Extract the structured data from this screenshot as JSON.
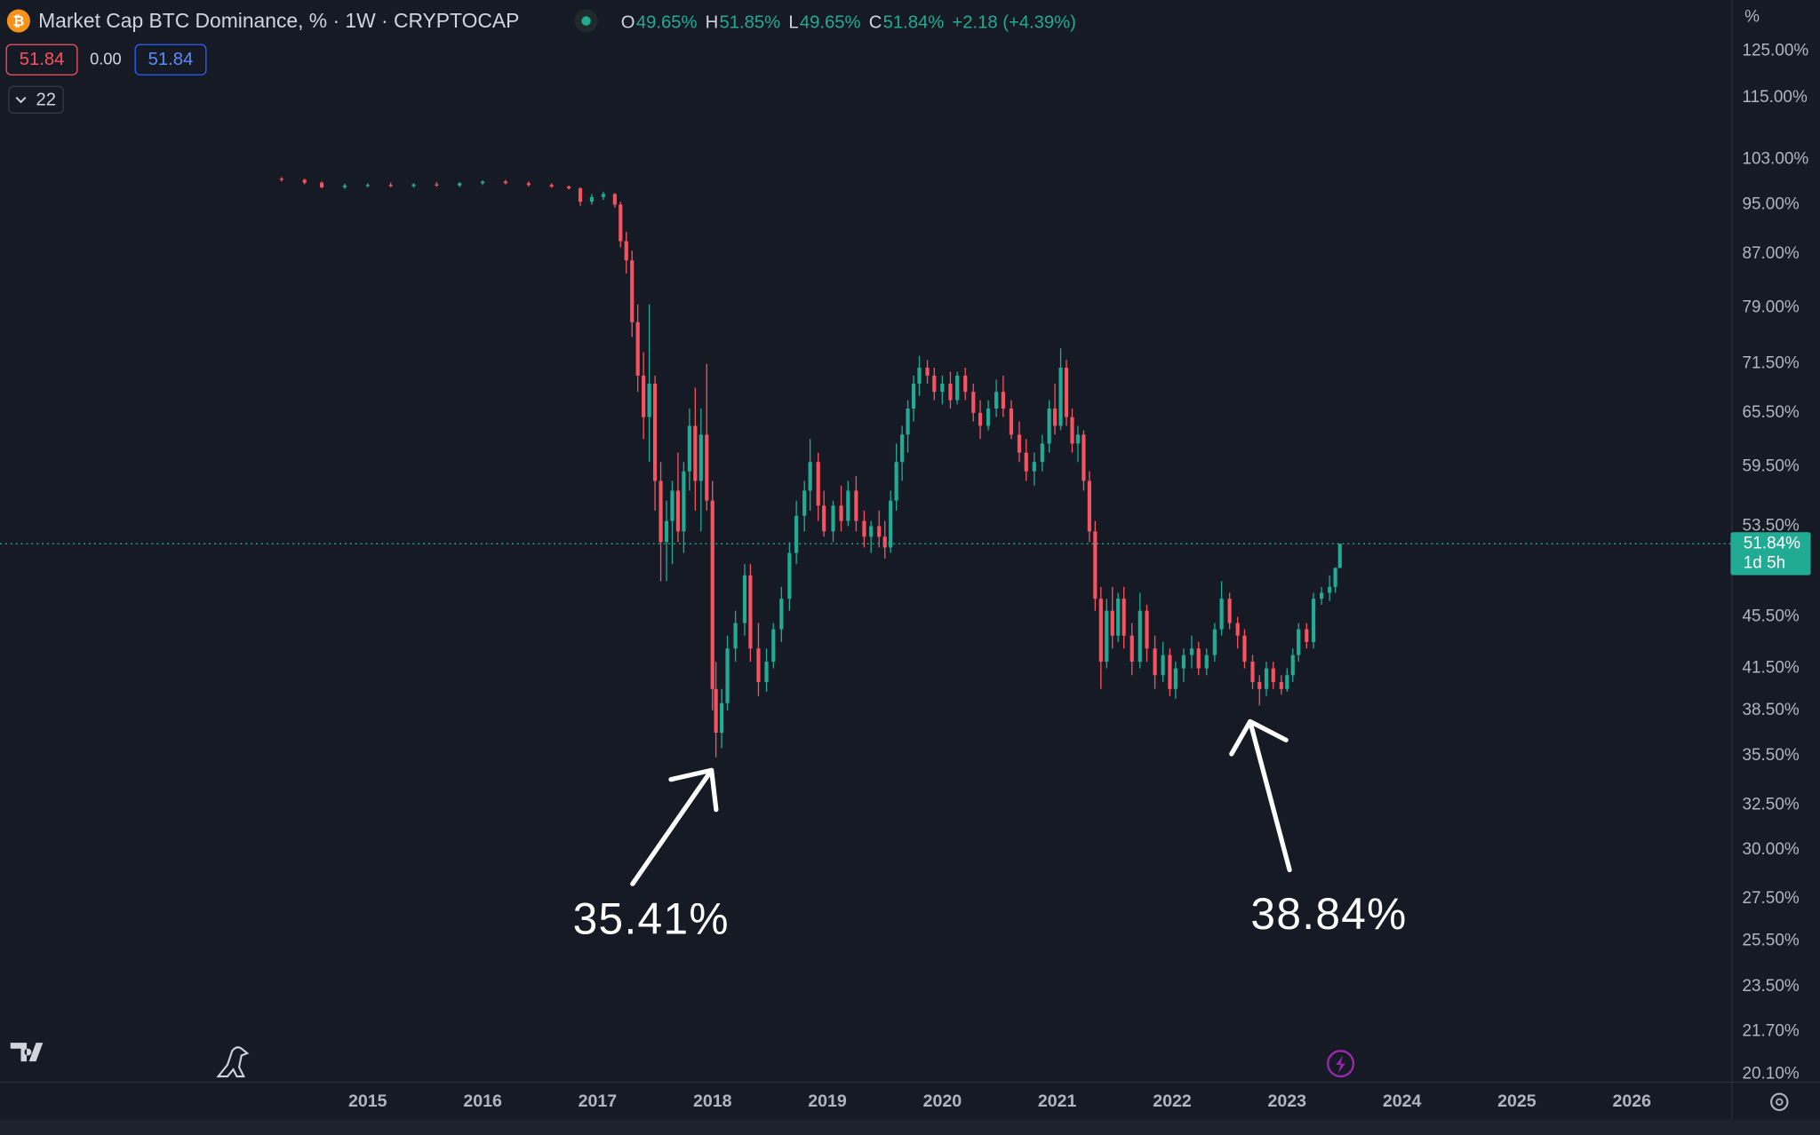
{
  "chart_data": {
    "type": "candlestick",
    "title": "Market Cap BTC Dominance, % · 1W · CRYPTOCAP",
    "ohlc_legend": [
      {
        "key": "O",
        "value": "49.65%"
      },
      {
        "key": "H",
        "value": "51.85%"
      },
      {
        "key": "L",
        "value": "49.65%"
      },
      {
        "key": "C",
        "value": "51.84%"
      }
    ],
    "change": "+2.18 (+4.39%)",
    "badges": [
      "51.84",
      "0.00",
      "51.84"
    ],
    "indicator_count": "22",
    "axis_unit": "%",
    "countdown": "1d 5h",
    "last_price_label": "51.84%",
    "annotations": [
      "35.41%",
      "38.84%"
    ],
    "log_scale": true,
    "grid": false,
    "up_color": "#22ab94",
    "down_color": "#f7525f",
    "xlim": [
      2011.8,
      2026.87
    ],
    "xticks": [
      2015,
      2016,
      2017,
      2018,
      2019,
      2020,
      2021,
      2022,
      2023,
      2024,
      2025,
      2026
    ],
    "ylim": [
      19.82,
      136.9
    ],
    "yticks": [
      {
        "value": 125,
        "label": "125.00%"
      },
      {
        "value": 115,
        "label": "115.00%"
      },
      {
        "value": 103,
        "label": "103.00%"
      },
      {
        "value": 95,
        "label": "95.00%"
      },
      {
        "value": 87,
        "label": "87.00%"
      },
      {
        "value": 79,
        "label": "79.00%"
      },
      {
        "value": 71.5,
        "label": "71.50%"
      },
      {
        "value": 65.5,
        "label": "65.50%"
      },
      {
        "value": 59.5,
        "label": "59.50%"
      },
      {
        "value": 53.5,
        "label": "53.50%"
      },
      {
        "value": 45.5,
        "label": "45.50%"
      },
      {
        "value": 41.5,
        "label": "41.50%"
      },
      {
        "value": 38.5,
        "label": "38.50%"
      },
      {
        "value": 35.5,
        "label": "35.50%"
      },
      {
        "value": 32.5,
        "label": "32.50%"
      },
      {
        "value": 30,
        "label": "30.00%"
      },
      {
        "value": 27.5,
        "label": "27.50%"
      },
      {
        "value": 25.5,
        "label": "25.50%"
      },
      {
        "value": 23.5,
        "label": "23.50%"
      },
      {
        "value": 21.7,
        "label": "21.70%"
      },
      {
        "value": 20.1,
        "label": "20.10%"
      }
    ],
    "x": [
      2014.25,
      2014.45,
      2014.6,
      2014.8,
      2015.0,
      2015.2,
      2015.4,
      2015.6,
      2015.8,
      2016.0,
      2016.2,
      2016.4,
      2016.6,
      2016.75,
      2016.85,
      2016.95,
      2017.05,
      2017.15,
      2017.2,
      2017.25,
      2017.3,
      2017.35,
      2017.4,
      2017.45,
      2017.5,
      2017.55,
      2017.6,
      2017.65,
      2017.7,
      2017.75,
      2017.8,
      2017.85,
      2017.9,
      2017.95,
      2018.0,
      2018.03,
      2018.08,
      2018.13,
      2018.2,
      2018.28,
      2018.33,
      2018.4,
      2018.47,
      2018.53,
      2018.6,
      2018.67,
      2018.73,
      2018.8,
      2018.85,
      2018.92,
      2018.97,
      2019.05,
      2019.12,
      2019.18,
      2019.25,
      2019.32,
      2019.38,
      2019.45,
      2019.5,
      2019.55,
      2019.6,
      2019.65,
      2019.7,
      2019.75,
      2019.8,
      2019.87,
      2019.93,
      2020.0,
      2020.07,
      2020.13,
      2020.2,
      2020.27,
      2020.33,
      2020.4,
      2020.47,
      2020.53,
      2020.6,
      2020.67,
      2020.73,
      2020.8,
      2020.87,
      2020.93,
      2020.98,
      2021.03,
      2021.08,
      2021.13,
      2021.18,
      2021.23,
      2021.28,
      2021.33,
      2021.38,
      2021.43,
      2021.48,
      2021.53,
      2021.58,
      2021.65,
      2021.72,
      2021.78,
      2021.85,
      2021.92,
      2021.98,
      2022.03,
      2022.1,
      2022.17,
      2022.23,
      2022.3,
      2022.37,
      2022.43,
      2022.5,
      2022.57,
      2022.63,
      2022.7,
      2022.76,
      2022.82,
      2022.88,
      2022.95,
      2023.0,
      2023.05,
      2023.1,
      2023.17,
      2023.23,
      2023.3,
      2023.37,
      2023.42,
      2023.46
    ],
    "open": [
      99.5,
      99.3,
      98.8,
      98.0,
      98.3,
      98.4,
      98.2,
      98.5,
      98.3,
      98.7,
      99.0,
      98.7,
      98.4,
      98.1,
      97.8,
      95.5,
      96.3,
      96.8,
      95.0,
      89.0,
      86.0,
      77.0,
      70.0,
      65.0,
      69.0,
      58.0,
      52.0,
      54.0,
      57.0,
      53.0,
      59.0,
      64.0,
      58.0,
      63.0,
      56.0,
      40.0,
      37.0,
      39.0,
      43.0,
      45.0,
      49.0,
      43.0,
      40.5,
      42.0,
      44.5,
      47.0,
      51.0,
      54.5,
      57.0,
      60.0,
      55.5,
      53.0,
      55.5,
      54.0,
      57.0,
      54.0,
      52.5,
      53.5,
      52.5,
      51.5,
      56.0,
      60.0,
      63.0,
      66.0,
      69.0,
      71.0,
      70.0,
      68.0,
      69.0,
      67.0,
      70.0,
      68.0,
      65.5,
      64.0,
      66.0,
      68.0,
      66.0,
      63.0,
      61.0,
      59.0,
      60.0,
      62.0,
      66.0,
      64.0,
      71.0,
      65.0,
      62.0,
      63.0,
      58.0,
      53.0,
      47.0,
      42.0,
      46.0,
      44.0,
      47.0,
      44.0,
      42.0,
      46.0,
      43.0,
      41.0,
      42.5,
      40.0,
      41.5,
      42.5,
      43.0,
      41.5,
      42.5,
      44.5,
      47.0,
      45.0,
      44.0,
      42.0,
      40.5,
      40.0,
      41.5,
      40.5,
      40.0,
      41.0,
      42.5,
      44.5,
      43.5,
      47.0,
      47.5,
      48.0,
      49.65
    ],
    "high": [
      99.8,
      99.5,
      99.0,
      98.6,
      98.7,
      98.8,
      98.7,
      98.9,
      98.9,
      99.2,
      99.3,
      99.0,
      98.7,
      98.3,
      98.0,
      96.8,
      97.2,
      97.0,
      95.5,
      90.5,
      87.5,
      79.5,
      73.0,
      79.5,
      70.0,
      60.0,
      56.0,
      58.0,
      61.0,
      60.0,
      66.0,
      68.5,
      66.0,
      71.5,
      58.0,
      42.0,
      40.0,
      44.0,
      46.0,
      50.0,
      50.0,
      45.0,
      43.0,
      45.0,
      48.0,
      52.0,
      56.0,
      58.0,
      62.5,
      61.0,
      57.0,
      56.0,
      57.5,
      58.0,
      58.5,
      55.0,
      54.0,
      55.0,
      54.0,
      57.0,
      62.0,
      64.0,
      67.0,
      70.0,
      72.5,
      72.0,
      71.0,
      70.0,
      70.5,
      70.5,
      71.0,
      69.0,
      67.0,
      67.0,
      69.5,
      70.0,
      67.0,
      64.5,
      62.5,
      61.0,
      63.0,
      67.0,
      69.0,
      73.5,
      72.0,
      66.0,
      64.0,
      63.5,
      59.0,
      54.0,
      48.0,
      47.0,
      48.0,
      47.5,
      48.0,
      45.0,
      47.5,
      46.5,
      44.0,
      43.5,
      43.0,
      42.0,
      43.0,
      44.0,
      43.5,
      43.0,
      45.0,
      48.5,
      47.5,
      45.5,
      44.5,
      42.5,
      41.0,
      42.0,
      42.0,
      41.0,
      41.5,
      43.0,
      45.0,
      45.0,
      47.5,
      48.0,
      49.0,
      49.7,
      51.85
    ],
    "low": [
      99.0,
      98.5,
      97.8,
      97.7,
      98.0,
      98.0,
      97.9,
      98.1,
      98.0,
      98.4,
      98.5,
      98.1,
      97.9,
      97.6,
      94.8,
      95.0,
      95.8,
      94.5,
      88.0,
      84.0,
      75.0,
      68.0,
      62.5,
      60.0,
      55.0,
      48.5,
      48.5,
      50.0,
      52.0,
      51.0,
      57.0,
      55.0,
      53.0,
      55.0,
      38.5,
      35.41,
      36.0,
      38.5,
      42.0,
      44.0,
      42.0,
      39.5,
      39.8,
      41.5,
      43.5,
      46.0,
      50.0,
      53.0,
      55.0,
      54.0,
      52.5,
      52.0,
      53.0,
      53.5,
      53.0,
      51.5,
      51.0,
      51.5,
      50.5,
      51.0,
      55.0,
      58.0,
      61.0,
      64.5,
      67.5,
      69.0,
      67.0,
      66.5,
      66.0,
      66.5,
      67.0,
      64.5,
      62.5,
      63.5,
      65.0,
      65.0,
      62.5,
      60.0,
      58.0,
      57.5,
      59.0,
      61.0,
      63.0,
      63.5,
      64.0,
      61.0,
      60.0,
      57.0,
      52.0,
      46.0,
      40.0,
      41.5,
      43.0,
      43.5,
      43.0,
      41.0,
      41.5,
      42.0,
      40.0,
      40.5,
      39.5,
      39.3,
      40.5,
      41.5,
      41.0,
      41.0,
      42.0,
      44.0,
      44.5,
      43.0,
      41.5,
      40.0,
      38.84,
      39.5,
      40.0,
      39.6,
      39.8,
      40.5,
      42.0,
      43.0,
      43.0,
      46.5,
      46.8,
      47.5,
      49.65
    ],
    "close": [
      99.3,
      98.8,
      98.0,
      98.3,
      98.4,
      98.2,
      98.5,
      98.3,
      98.7,
      99.0,
      98.7,
      98.4,
      98.1,
      97.8,
      95.5,
      96.3,
      96.8,
      95.0,
      89.0,
      86.0,
      77.0,
      70.0,
      65.0,
      69.0,
      58.0,
      52.0,
      54.0,
      57.0,
      53.0,
      59.0,
      64.0,
      58.0,
      63.0,
      56.0,
      40.0,
      37.0,
      39.0,
      43.0,
      45.0,
      49.0,
      43.0,
      40.5,
      42.0,
      44.5,
      47.0,
      51.0,
      54.5,
      57.0,
      60.0,
      55.5,
      53.0,
      55.5,
      54.0,
      57.0,
      54.0,
      52.5,
      53.5,
      52.5,
      51.5,
      56.0,
      60.0,
      63.0,
      66.0,
      69.0,
      71.0,
      70.0,
      68.0,
      69.0,
      67.0,
      70.0,
      68.0,
      65.5,
      64.0,
      66.0,
      68.0,
      66.0,
      63.0,
      61.0,
      59.0,
      60.0,
      62.0,
      66.0,
      64.0,
      71.0,
      65.0,
      62.0,
      63.0,
      58.0,
      53.0,
      47.0,
      42.0,
      46.0,
      44.0,
      47.0,
      44.0,
      42.0,
      46.0,
      43.0,
      41.0,
      42.5,
      40.0,
      41.5,
      42.5,
      43.0,
      41.5,
      42.5,
      44.5,
      47.0,
      45.0,
      44.0,
      42.0,
      40.5,
      40.0,
      41.5,
      40.5,
      40.0,
      41.0,
      42.5,
      44.5,
      43.5,
      47.0,
      47.5,
      48.0,
      49.65,
      51.84
    ]
  }
}
